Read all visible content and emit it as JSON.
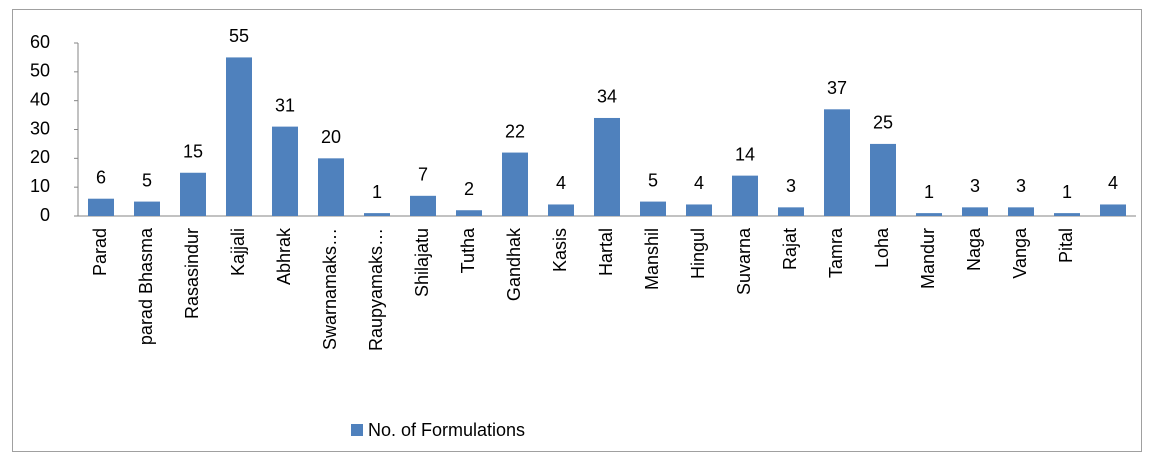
{
  "chart_data": {
    "type": "bar",
    "categories": [
      "Parad",
      "parad Bhasma",
      "Rasasindur",
      "Kajjali",
      "Abhrak",
      "Swarnamaks…",
      "Raupyamaks…",
      "Shilajatu",
      "Tutha",
      "Gandhak",
      "Kasis",
      "Hartal",
      "Manshil",
      "Hingul",
      "Suvarna",
      "Rajat",
      "Tamra",
      "Loha",
      "Mandur",
      "Naga",
      "Vanga",
      "Pital",
      null
    ],
    "series": [
      {
        "name": "No. of Formulations",
        "color": "#4f81bd",
        "values": [
          6,
          5,
          15,
          55,
          31,
          20,
          1,
          7,
          2,
          22,
          4,
          34,
          5,
          4,
          14,
          3,
          37,
          25,
          1,
          3,
          3,
          1,
          4
        ]
      }
    ],
    "ylim": [
      0,
      60
    ],
    "yticks": [
      0,
      10,
      20,
      30,
      40,
      50,
      60
    ],
    "grid": false,
    "legend": "bottom"
  }
}
